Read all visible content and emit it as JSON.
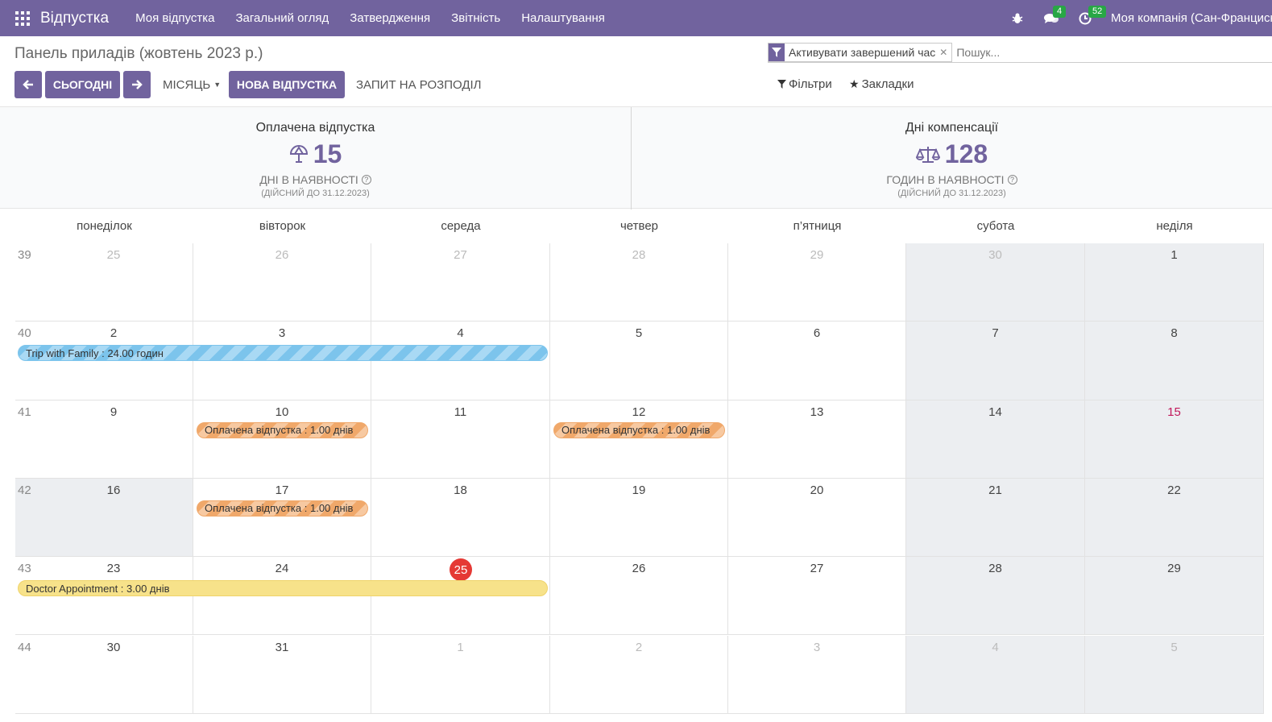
{
  "navbar": {
    "app_name": "Відпустка",
    "menu": [
      "Моя відпустка",
      "Загальний огляд",
      "Затвердження",
      "Звітність",
      "Налаштування"
    ],
    "messages_count": "4",
    "activities_count": "52",
    "company": "Моя компанія (Сан-Франциско)"
  },
  "control": {
    "breadcrumb": "Панель приладів (жовтень 2023 р.)",
    "facet_label": "Активувати завершений час",
    "search_placeholder": "Пошук...",
    "today_label": "СЬОГОДНІ",
    "scale_label": "МІСЯЦЬ",
    "new_leave_label": "НОВА ВІДПУСТКА",
    "allocation_label": "ЗАПИТ НА РОЗПОДІЛ",
    "filters_label": "Фільтри",
    "bookmarks_label": "Закладки"
  },
  "dashboard": {
    "paid": {
      "title": "Оплачена відпустка",
      "value": "15",
      "unit": "ДНІ В НАЯВНОСТІ",
      "valid": "(ДІЙСНИЙ ДО 31.12.2023)",
      "icon": "umbrella-icon"
    },
    "comp": {
      "title": "Дні компенсації",
      "value": "128",
      "unit": "ГОДИН В НАЯВНОСТІ",
      "valid": "(ДІЙСНИЙ ДО 31.12.2023)",
      "icon": "balance-scale-icon"
    }
  },
  "calendar": {
    "weekdays": [
      "понеділок",
      "вівторок",
      "середа",
      "четвер",
      "п’ятниця",
      "субота",
      "неділя"
    ],
    "weeks": [
      {
        "num": "39",
        "days": [
          "25",
          "26",
          "27",
          "28",
          "29",
          "30",
          "1"
        ]
      },
      {
        "num": "40",
        "days": [
          "2",
          "3",
          "4",
          "5",
          "6",
          "7",
          "8"
        ]
      },
      {
        "num": "41",
        "days": [
          "9",
          "10",
          "11",
          "12",
          "13",
          "14",
          "15"
        ]
      },
      {
        "num": "42",
        "days": [
          "16",
          "17",
          "18",
          "19",
          "20",
          "21",
          "22"
        ]
      },
      {
        "num": "43",
        "days": [
          "23",
          "24",
          "25",
          "26",
          "27",
          "28",
          "29"
        ]
      },
      {
        "num": "44",
        "days": [
          "30",
          "31",
          "1",
          "2",
          "3",
          "4",
          "5"
        ]
      }
    ],
    "events": {
      "trip": "Trip with Family : 24.00 годин",
      "paid_10": "Оплачена відпустка : 1.00 днів",
      "paid_12": "Оплачена відпустка : 1.00 днів",
      "paid_17": "Оплачена відпустка : 1.00 днів",
      "doctor": "Doctor Appointment : 3.00 днів"
    }
  },
  "colors": {
    "brand": "#71639e",
    "today": "#e53935",
    "holiday": "#c2185b"
  }
}
